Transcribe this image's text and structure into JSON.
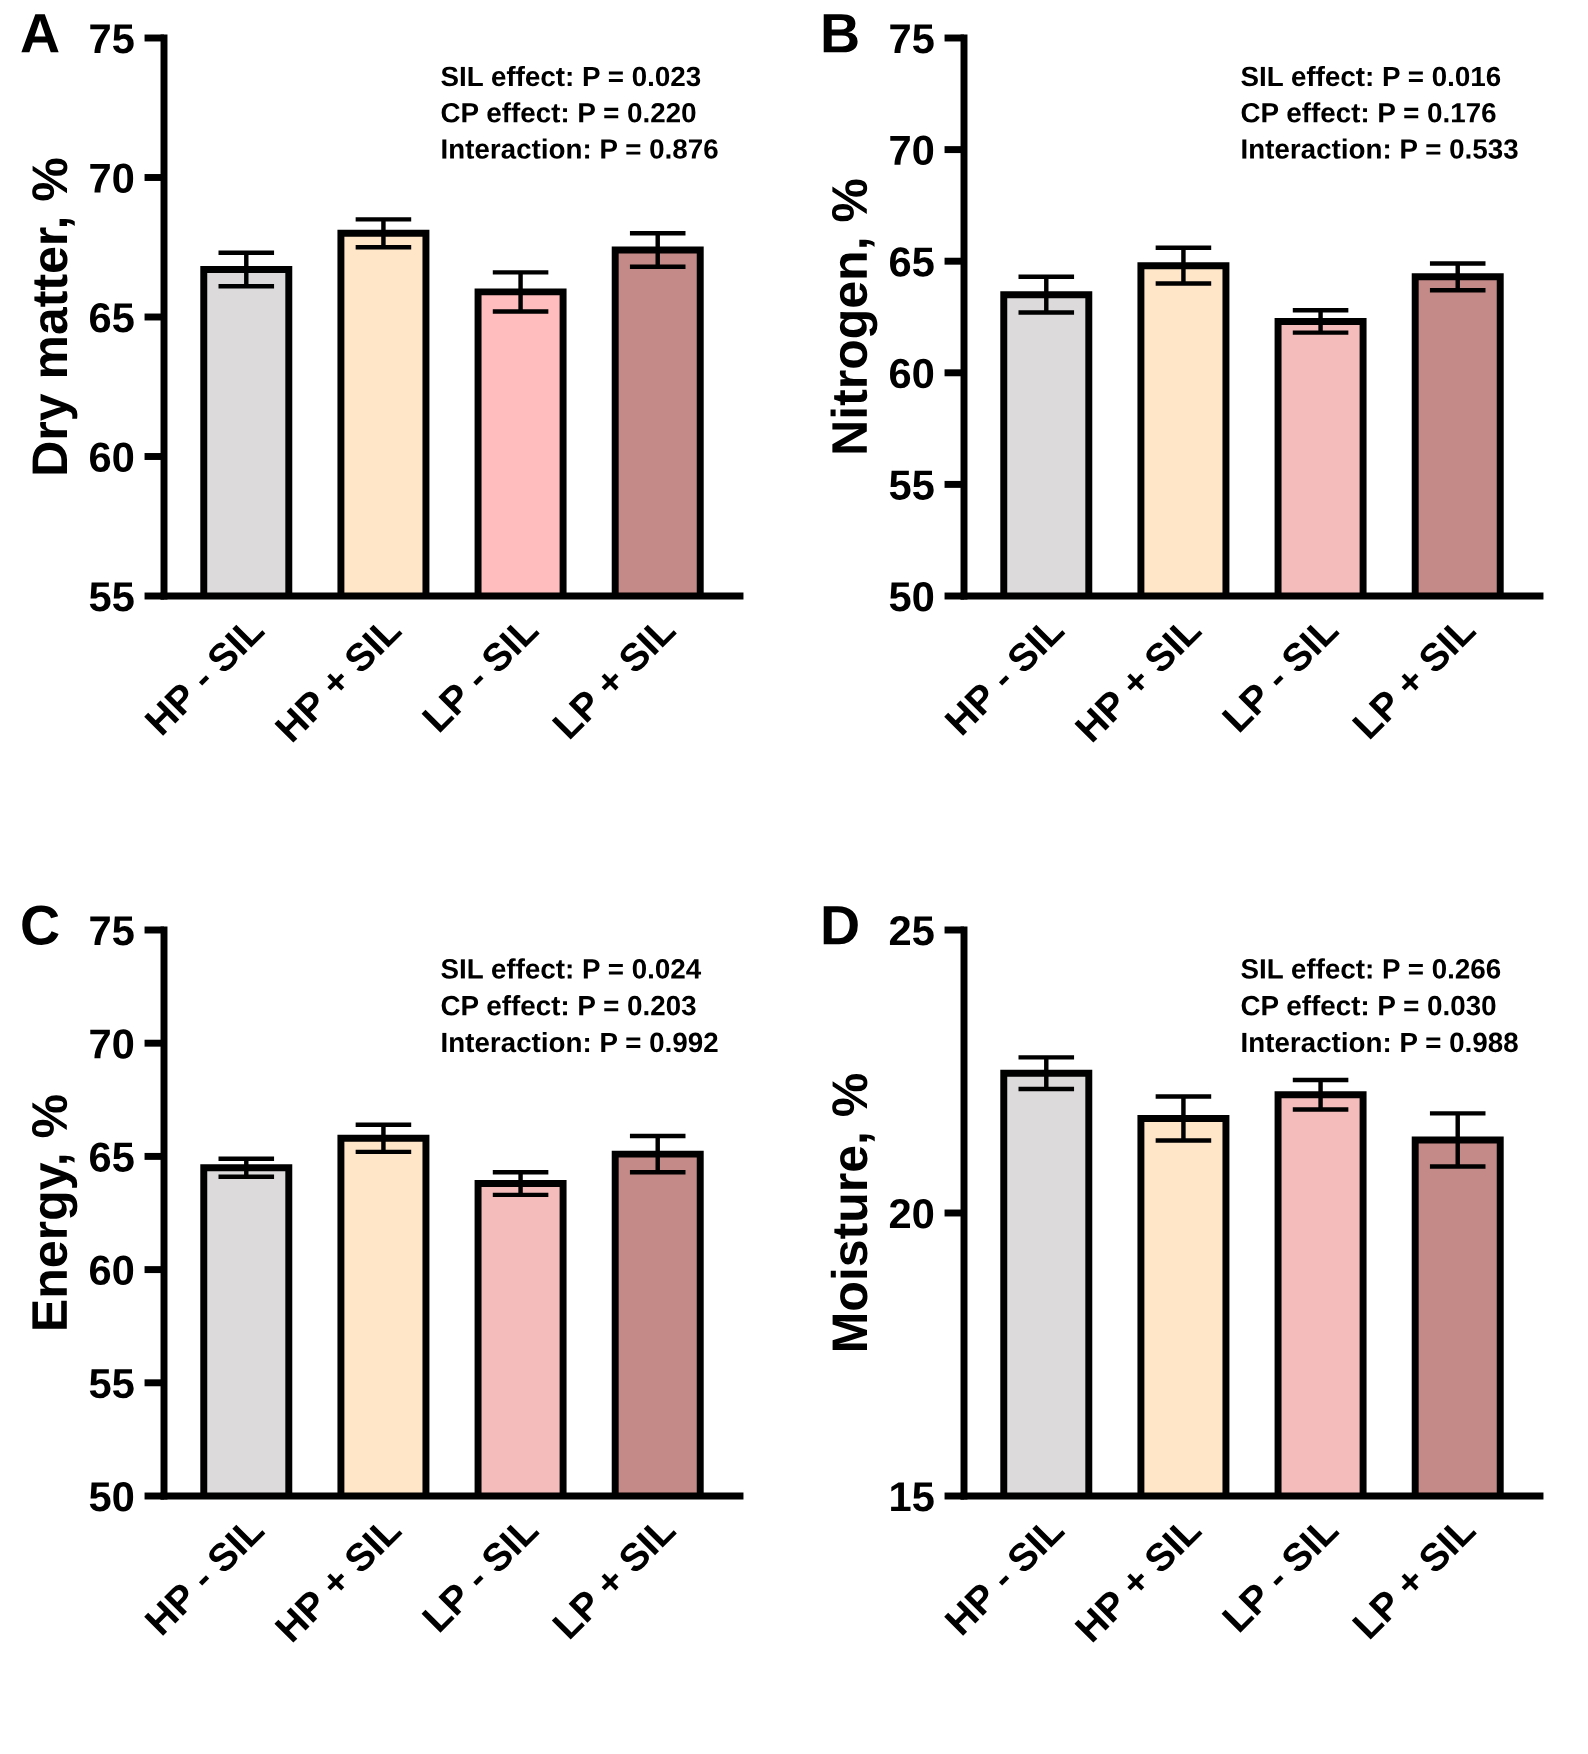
{
  "chart_data": [
    {
      "type": "bar",
      "title": "A",
      "ylabel": "Dry matter, %",
      "categories": [
        "HP - SIL",
        "HP + SIL",
        "LP - SIL",
        "LP + SIL"
      ],
      "values": [
        66.7,
        68.0,
        65.9,
        67.4
      ],
      "errors": [
        0.6,
        0.5,
        0.7,
        0.6
      ],
      "colors": [
        "#dcdadb",
        "#ffe6c9",
        "#ffbdbd",
        "#c48a87"
      ],
      "ylim": [
        55,
        75
      ],
      "yticks": [
        55,
        60,
        65,
        70,
        75
      ],
      "grid": false,
      "legend": false,
      "annotations": [
        "SIL effect: P = 0.023",
        "CP effect: P = 0.220",
        "Interaction: P = 0.876"
      ]
    },
    {
      "type": "bar",
      "title": "B",
      "ylabel": "Nitrogen, %",
      "categories": [
        "HP - SIL",
        "HP + SIL",
        "LP - SIL",
        "LP + SIL"
      ],
      "values": [
        63.5,
        64.8,
        62.3,
        64.3
      ],
      "errors": [
        0.8,
        0.8,
        0.5,
        0.6
      ],
      "colors": [
        "#dcdadb",
        "#ffe6c9",
        "#f5bcbc",
        "#c48a87"
      ],
      "ylim": [
        50,
        75
      ],
      "yticks": [
        50,
        55,
        60,
        65,
        70,
        75
      ],
      "grid": false,
      "legend": false,
      "annotations": [
        "SIL effect: P = 0.016",
        "CP effect: P = 0.176",
        "Interaction: P = 0.533"
      ]
    },
    {
      "type": "bar",
      "title": "C",
      "ylabel": "Energy, %",
      "categories": [
        "HP - SIL",
        "HP + SIL",
        "LP - SIL",
        "LP + SIL"
      ],
      "values": [
        64.5,
        65.8,
        63.8,
        65.1
      ],
      "errors": [
        0.4,
        0.6,
        0.5,
        0.8
      ],
      "colors": [
        "#dcdadb",
        "#ffe6c9",
        "#f5bcbc",
        "#c48a87"
      ],
      "ylim": [
        50,
        75
      ],
      "yticks": [
        50,
        55,
        60,
        65,
        70,
        75
      ],
      "grid": false,
      "legend": false,
      "annotations": [
        "SIL effect: P = 0.024",
        "CP effect: P = 0.203",
        "Interaction: P = 0.992"
      ]
    },
    {
      "type": "bar",
      "title": "D",
      "ylabel": "Moisture, %",
      "categories": [
        "HP - SIL",
        "HP + SIL",
        "LP - SIL",
        "LP + SIL"
      ],
      "values": [
        22.47,
        21.67,
        22.09,
        21.29
      ],
      "errors": [
        0.28,
        0.39,
        0.26,
        0.47
      ],
      "colors": [
        "#dcdadb",
        "#ffe6c9",
        "#f5bcbc",
        "#c48a87"
      ],
      "ylim": [
        15,
        25
      ],
      "yticks": [
        15,
        20,
        25
      ],
      "grid": false,
      "legend": false,
      "annotations": [
        "SIL effect: P = 0.266",
        "CP effect: P = 0.030",
        "Interaction: P = 0.988"
      ]
    }
  ]
}
